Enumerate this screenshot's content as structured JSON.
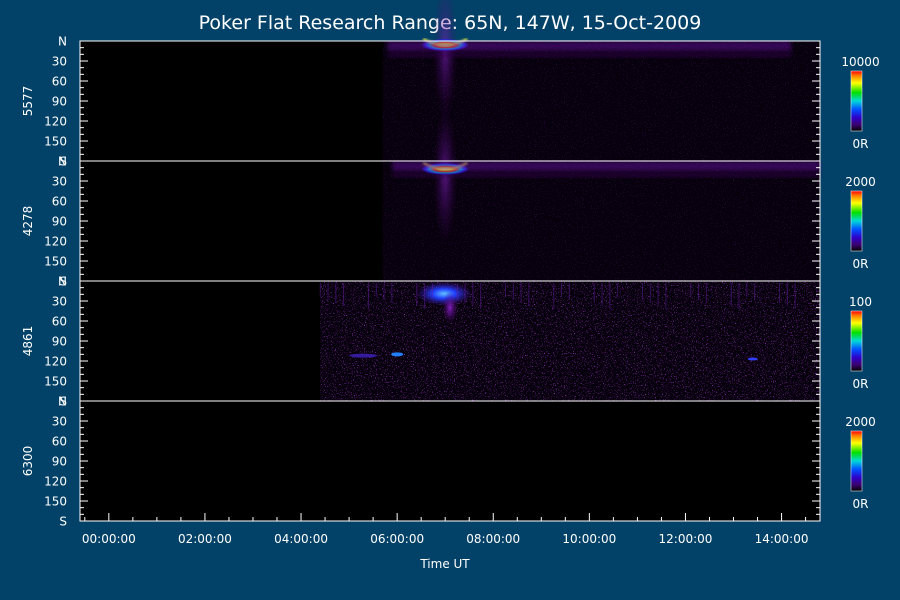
{
  "chart_data": {
    "type": "heatmap",
    "title": "Poker Flat Research Range: 65N, 147W, 15-Oct-2009",
    "xlabel": "Time UT",
    "x_ticks": [
      "00:00:00",
      "02:00:00",
      "04:00:00",
      "06:00:00",
      "08:00:00",
      "10:00:00",
      "12:00:00",
      "14:00:00"
    ],
    "x_tick_hours": [
      0,
      2,
      4,
      6,
      8,
      10,
      12,
      14
    ],
    "xlim_hours": [
      -0.6,
      14.8
    ],
    "y_ticks": [
      "N",
      "30",
      "60",
      "90",
      "120",
      "150",
      "S"
    ],
    "y_tick_values": [
      0,
      30,
      60,
      90,
      120,
      150,
      180
    ],
    "ylim": [
      0,
      180
    ],
    "panels": [
      {
        "ylabel": "5577",
        "colorbar_max": "10000",
        "colorbar_min": "0R",
        "data_start_hour": 5.7,
        "features": [
          {
            "kind": "peak",
            "time_hour": 7.0,
            "angle_center": 6,
            "label": "bright arc"
          },
          {
            "kind": "band",
            "from_hour": 5.8,
            "to_hour": 14.2,
            "angle_from": 0,
            "angle_to": 25
          }
        ]
      },
      {
        "ylabel": "4278",
        "colorbar_max": "2000",
        "colorbar_min": "0R",
        "data_start_hour": 5.7,
        "features": [
          {
            "kind": "peak",
            "time_hour": 7.0,
            "angle_center": 12,
            "label": "bright arc"
          },
          {
            "kind": "band",
            "from_hour": 5.9,
            "to_hour": 14.8,
            "angle_from": 0,
            "angle_to": 25
          }
        ]
      },
      {
        "ylabel": "4861",
        "colorbar_max": "100",
        "colorbar_min": "0R",
        "data_start_hour": 4.4,
        "features": [
          {
            "kind": "peak",
            "time_hour": 7.1,
            "angle_center": 25,
            "label": "bright patch"
          },
          {
            "kind": "noise",
            "from_hour": 4.4,
            "to_hour": 14.8,
            "angle_from": 0,
            "angle_to": 180
          }
        ]
      },
      {
        "ylabel": "6300",
        "colorbar_max": "2000",
        "colorbar_min": "0R",
        "data_start_hour": null,
        "features": []
      }
    ]
  }
}
